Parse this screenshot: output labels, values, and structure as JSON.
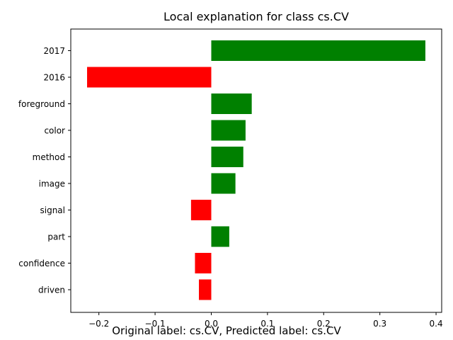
{
  "chart_data": {
    "type": "bar",
    "orientation": "horizontal",
    "title": "Local explanation for class cs.CV",
    "xlabel": "",
    "ylabel": "",
    "categories": [
      "2017",
      "2016",
      "foreground",
      "color",
      "method",
      "image",
      "signal",
      "part",
      "confidence",
      "driven"
    ],
    "values": [
      0.381,
      -0.221,
      0.072,
      0.061,
      0.057,
      0.043,
      -0.036,
      0.032,
      -0.029,
      -0.022
    ],
    "xlim": [
      -0.25,
      0.41
    ],
    "xticks": [
      -0.2,
      -0.1,
      0.0,
      0.1,
      0.2,
      0.3,
      0.4
    ],
    "xtick_labels": [
      "−0.2",
      "−0.1",
      "0.0",
      "0.1",
      "0.2",
      "0.3",
      "0.4"
    ],
    "positive_color": "#008000",
    "negative_color": "#ff0000",
    "grid": false,
    "legend": "none"
  },
  "caption": "Original label: cs.CV, Predicted label: cs.CV"
}
